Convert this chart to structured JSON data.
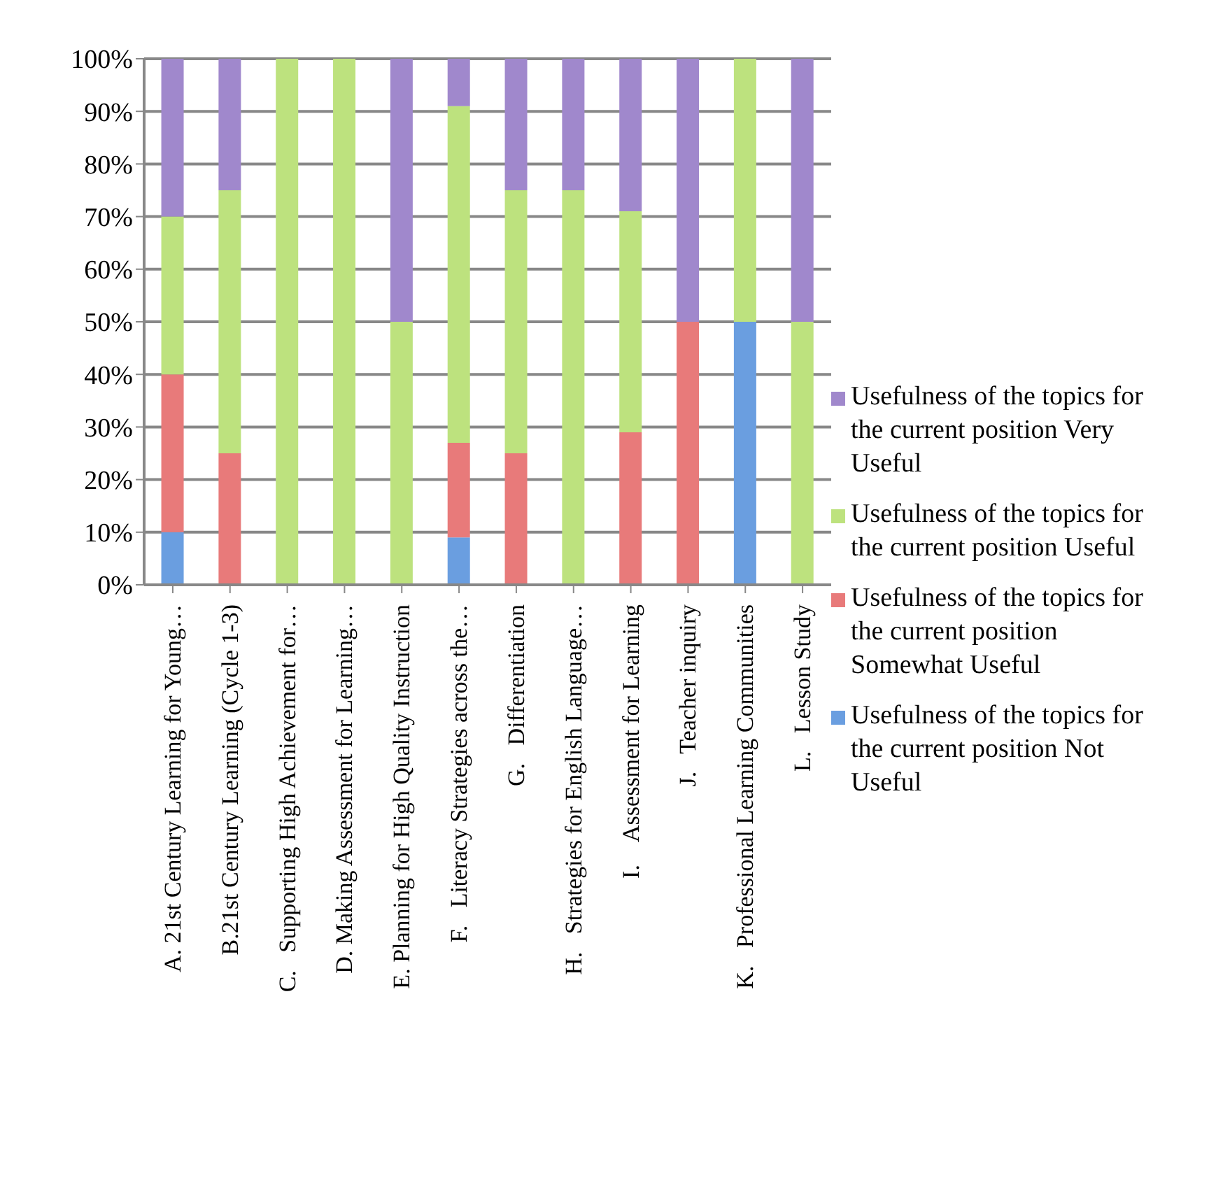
{
  "chart_data": {
    "type": "bar",
    "stacked": true,
    "categories": [
      "A. 21st Century Learning for Young…",
      "B.21st Century Learning (Cycle 1-3)",
      "C.   Supporting High Achievement for…",
      "D. Making Assessment for Learning…",
      "E. Planning for High Quality Instruction",
      "F.   Literacy Strategies across the…",
      "G.   Differentiation",
      "H.   Strategies for English Language…",
      "I.    Assessment for Learning",
      "J.   Teacher inquiry",
      "K.   Professional Learning Communities",
      "L.   Lesson Study"
    ],
    "series": [
      {
        "name": "Usefulness of the topics for the current position Not Useful",
        "color": "#6a9ee0",
        "values": [
          10,
          0,
          0,
          0,
          0,
          9,
          0,
          0,
          0,
          0,
          50,
          0
        ]
      },
      {
        "name": "Usefulness of the topics for the current position Somewhat Useful",
        "color": "#e87a7a",
        "values": [
          30,
          25,
          0,
          0,
          0,
          18,
          25,
          0,
          29,
          50,
          0,
          0
        ]
      },
      {
        "name": "Usefulness of the topics for the current position Useful",
        "color": "#bde27e",
        "values": [
          30,
          50,
          100,
          100,
          50,
          64,
          50,
          75,
          42,
          0,
          50,
          50
        ]
      },
      {
        "name": "Usefulness of the topics for the current position Very Useful",
        "color": "#a088cc",
        "values": [
          30,
          25,
          0,
          0,
          50,
          9,
          25,
          25,
          29,
          50,
          0,
          50
        ]
      }
    ],
    "ylim": [
      0,
      100
    ],
    "yticks": [
      {
        "value": 0,
        "label": "0%"
      },
      {
        "value": 10,
        "label": "10%"
      },
      {
        "value": 20,
        "label": "20%"
      },
      {
        "value": 30,
        "label": "30%"
      },
      {
        "value": 40,
        "label": "40%"
      },
      {
        "value": 50,
        "label": "50%"
      },
      {
        "value": 60,
        "label": "60%"
      },
      {
        "value": 70,
        "label": "70%"
      },
      {
        "value": 80,
        "label": "80%"
      },
      {
        "value": 90,
        "label": "90%"
      },
      {
        "value": 100,
        "label": "100%"
      }
    ],
    "grid": "y",
    "legend": "right"
  }
}
